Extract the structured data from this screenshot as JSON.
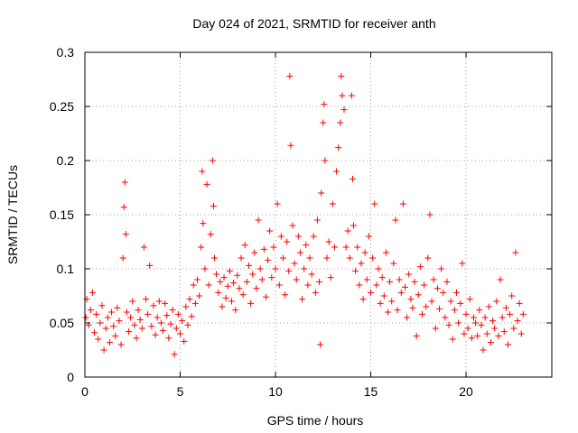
{
  "chart_data": {
    "type": "scatter",
    "title": "Day 024 of 2021, SRMTID for receiver anth",
    "xlabel": "GPS time / hours",
    "ylabel": "SRMTID / TECUs",
    "xlim": [
      0,
      24.5
    ],
    "ylim": [
      0,
      0.3
    ],
    "x_ticks": [
      0,
      5,
      10,
      15,
      20
    ],
    "x_tick_labels": [
      "0",
      "5",
      "10",
      "15",
      "20"
    ],
    "y_ticks": [
      0,
      0.05,
      0.1,
      0.15,
      0.2,
      0.25,
      0.3
    ],
    "y_tick_labels": [
      "0",
      "0.05",
      "0.1",
      "0.15",
      "0.2",
      "0.25",
      "0.3"
    ],
    "grid": true,
    "marker": "plus",
    "color": "#ff0000",
    "series": [
      {
        "name": "anth",
        "points": [
          [
            0.05,
            0.055
          ],
          [
            0.1,
            0.072
          ],
          [
            0.2,
            0.048
          ],
          [
            0.3,
            0.062
          ],
          [
            0.4,
            0.078
          ],
          [
            0.5,
            0.041
          ],
          [
            0.6,
            0.058
          ],
          [
            0.7,
            0.035
          ],
          [
            0.8,
            0.05
          ],
          [
            0.9,
            0.066
          ],
          [
            1.0,
            0.025
          ],
          [
            1.1,
            0.045
          ],
          [
            1.2,
            0.055
          ],
          [
            1.3,
            0.032
          ],
          [
            1.4,
            0.06
          ],
          [
            1.5,
            0.047
          ],
          [
            1.6,
            0.038
          ],
          [
            1.7,
            0.064
          ],
          [
            1.8,
            0.052
          ],
          [
            1.9,
            0.03
          ],
          [
            2.0,
            0.11
          ],
          [
            2.05,
            0.157
          ],
          [
            2.1,
            0.18
          ],
          [
            2.15,
            0.132
          ],
          [
            2.2,
            0.06
          ],
          [
            2.3,
            0.042
          ],
          [
            2.4,
            0.055
          ],
          [
            2.5,
            0.07
          ],
          [
            2.6,
            0.048
          ],
          [
            2.7,
            0.036
          ],
          [
            2.8,
            0.062
          ],
          [
            2.9,
            0.053
          ],
          [
            3.0,
            0.045
          ],
          [
            3.1,
            0.12
          ],
          [
            3.2,
            0.072
          ],
          [
            3.3,
            0.058
          ],
          [
            3.4,
            0.103
          ],
          [
            3.5,
            0.047
          ],
          [
            3.6,
            0.066
          ],
          [
            3.7,
            0.039
          ],
          [
            3.8,
            0.055
          ],
          [
            3.9,
            0.07
          ],
          [
            4.0,
            0.05
          ],
          [
            4.1,
            0.043
          ],
          [
            4.2,
            0.068
          ],
          [
            4.3,
            0.057
          ],
          [
            4.4,
            0.036
          ],
          [
            4.5,
            0.049
          ],
          [
            4.6,
            0.062
          ],
          [
            4.7,
            0.021
          ],
          [
            4.8,
            0.045
          ],
          [
            4.9,
            0.058
          ],
          [
            5.0,
            0.04
          ],
          [
            5.1,
            0.052
          ],
          [
            5.2,
            0.033
          ],
          [
            5.3,
            0.065
          ],
          [
            5.4,
            0.048
          ],
          [
            5.5,
            0.072
          ],
          [
            5.6,
            0.056
          ],
          [
            5.7,
            0.085
          ],
          [
            5.8,
            0.068
          ],
          [
            5.9,
            0.09
          ],
          [
            6.0,
            0.075
          ],
          [
            6.1,
            0.12
          ],
          [
            6.15,
            0.19
          ],
          [
            6.2,
            0.142
          ],
          [
            6.3,
            0.1
          ],
          [
            6.4,
            0.178
          ],
          [
            6.5,
            0.085
          ],
          [
            6.6,
            0.132
          ],
          [
            6.7,
            0.2
          ],
          [
            6.75,
            0.158
          ],
          [
            6.8,
            0.11
          ],
          [
            6.9,
            0.095
          ],
          [
            7.0,
            0.078
          ],
          [
            7.1,
            0.088
          ],
          [
            7.2,
            0.065
          ],
          [
            7.3,
            0.092
          ],
          [
            7.4,
            0.073
          ],
          [
            7.5,
            0.084
          ],
          [
            7.6,
            0.098
          ],
          [
            7.7,
            0.07
          ],
          [
            7.8,
            0.087
          ],
          [
            7.9,
            0.062
          ],
          [
            8.0,
            0.094
          ],
          [
            8.1,
            0.082
          ],
          [
            8.2,
            0.11
          ],
          [
            8.3,
            0.076
          ],
          [
            8.4,
            0.122
          ],
          [
            8.5,
            0.088
          ],
          [
            8.6,
            0.103
          ],
          [
            8.7,
            0.068
          ],
          [
            8.8,
            0.095
          ],
          [
            8.9,
            0.115
          ],
          [
            9.0,
            0.082
          ],
          [
            9.1,
            0.145
          ],
          [
            9.2,
            0.1
          ],
          [
            9.3,
            0.09
          ],
          [
            9.4,
            0.118
          ],
          [
            9.5,
            0.074
          ],
          [
            9.6,
            0.108
          ],
          [
            9.7,
            0.135
          ],
          [
            9.8,
            0.092
          ],
          [
            9.9,
            0.12
          ],
          [
            10.0,
            0.1
          ],
          [
            10.1,
            0.16
          ],
          [
            10.2,
            0.085
          ],
          [
            10.3,
            0.13
          ],
          [
            10.4,
            0.11
          ],
          [
            10.5,
            0.076
          ],
          [
            10.6,
            0.125
          ],
          [
            10.7,
            0.098
          ],
          [
            10.75,
            0.278
          ],
          [
            10.8,
            0.214
          ],
          [
            10.9,
            0.14
          ],
          [
            11.0,
            0.105
          ],
          [
            11.1,
            0.09
          ],
          [
            11.2,
            0.13
          ],
          [
            11.3,
            0.115
          ],
          [
            11.4,
            0.072
          ],
          [
            11.5,
            0.1
          ],
          [
            11.6,
            0.122
          ],
          [
            11.7,
            0.085
          ],
          [
            11.8,
            0.11
          ],
          [
            11.9,
            0.095
          ],
          [
            12.0,
            0.13
          ],
          [
            12.1,
            0.078
          ],
          [
            12.2,
            0.145
          ],
          [
            12.3,
            0.088
          ],
          [
            12.35,
            0.03
          ],
          [
            12.4,
            0.17
          ],
          [
            12.5,
            0.235
          ],
          [
            12.55,
            0.252
          ],
          [
            12.6,
            0.2
          ],
          [
            12.7,
            0.11
          ],
          [
            12.8,
            0.125
          ],
          [
            12.9,
            0.092
          ],
          [
            13.0,
            0.16
          ],
          [
            13.1,
            0.12
          ],
          [
            13.2,
            0.19
          ],
          [
            13.3,
            0.212
          ],
          [
            13.4,
            0.235
          ],
          [
            13.45,
            0.278
          ],
          [
            13.5,
            0.26
          ],
          [
            13.6,
            0.247
          ],
          [
            13.7,
            0.12
          ],
          [
            13.8,
            0.135
          ],
          [
            13.9,
            0.11
          ],
          [
            14.0,
            0.26
          ],
          [
            14.05,
            0.183
          ],
          [
            14.1,
            0.14
          ],
          [
            14.2,
            0.098
          ],
          [
            14.3,
            0.12
          ],
          [
            14.4,
            0.085
          ],
          [
            14.5,
            0.105
          ],
          [
            14.6,
            0.072
          ],
          [
            14.7,
            0.115
          ],
          [
            14.8,
            0.09
          ],
          [
            14.9,
            0.13
          ],
          [
            15.0,
            0.078
          ],
          [
            15.1,
            0.11
          ],
          [
            15.2,
            0.16
          ],
          [
            15.3,
            0.085
          ],
          [
            15.4,
            0.1
          ],
          [
            15.5,
            0.068
          ],
          [
            15.6,
            0.092
          ],
          [
            15.7,
            0.075
          ],
          [
            15.8,
            0.115
          ],
          [
            15.9,
            0.06
          ],
          [
            16.0,
            0.088
          ],
          [
            16.1,
            0.07
          ],
          [
            16.2,
            0.105
          ],
          [
            16.3,
            0.145
          ],
          [
            16.4,
            0.062
          ],
          [
            16.5,
            0.09
          ],
          [
            16.6,
            0.078
          ],
          [
            16.7,
            0.16
          ],
          [
            16.8,
            0.083
          ],
          [
            16.9,
            0.055
          ],
          [
            17.0,
            0.095
          ],
          [
            17.1,
            0.072
          ],
          [
            17.2,
            0.064
          ],
          [
            17.3,
            0.088
          ],
          [
            17.4,
            0.038
          ],
          [
            17.5,
            0.076
          ],
          [
            17.6,
            0.102
          ],
          [
            17.7,
            0.058
          ],
          [
            17.8,
            0.085
          ],
          [
            17.9,
            0.065
          ],
          [
            18.0,
            0.11
          ],
          [
            18.1,
            0.15
          ],
          [
            18.2,
            0.07
          ],
          [
            18.3,
            0.09
          ],
          [
            18.4,
            0.045
          ],
          [
            18.5,
            0.082
          ],
          [
            18.6,
            0.063
          ],
          [
            18.7,
            0.1
          ],
          [
            18.8,
            0.078
          ],
          [
            18.9,
            0.055
          ],
          [
            19.0,
            0.088
          ],
          [
            19.1,
            0.048
          ],
          [
            19.2,
            0.07
          ],
          [
            19.3,
            0.035
          ],
          [
            19.4,
            0.062
          ],
          [
            19.5,
            0.078
          ],
          [
            19.6,
            0.05
          ],
          [
            19.7,
            0.068
          ],
          [
            19.8,
            0.105
          ],
          [
            19.9,
            0.04
          ],
          [
            20.0,
            0.058
          ],
          [
            20.1,
            0.045
          ],
          [
            20.2,
            0.072
          ],
          [
            20.3,
            0.036
          ],
          [
            20.4,
            0.055
          ],
          [
            20.5,
            0.05
          ],
          [
            20.6,
            0.038
          ],
          [
            20.7,
            0.062
          ],
          [
            20.8,
            0.048
          ],
          [
            20.9,
            0.025
          ],
          [
            21.0,
            0.055
          ],
          [
            21.1,
            0.04
          ],
          [
            21.2,
            0.065
          ],
          [
            21.3,
            0.032
          ],
          [
            21.4,
            0.052
          ],
          [
            21.5,
            0.045
          ],
          [
            21.6,
            0.07
          ],
          [
            21.7,
            0.038
          ],
          [
            21.8,
            0.09
          ],
          [
            21.9,
            0.055
          ],
          [
            22.0,
            0.042
          ],
          [
            22.1,
            0.064
          ],
          [
            22.2,
            0.03
          ],
          [
            22.3,
            0.058
          ],
          [
            22.4,
            0.075
          ],
          [
            22.5,
            0.045
          ],
          [
            22.6,
            0.115
          ],
          [
            22.7,
            0.052
          ],
          [
            22.8,
            0.068
          ],
          [
            22.9,
            0.04
          ],
          [
            23.0,
            0.058
          ]
        ]
      }
    ]
  }
}
